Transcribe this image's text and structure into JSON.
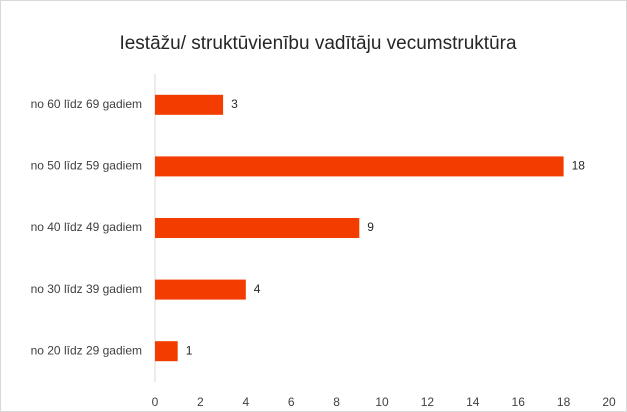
{
  "chart_data": {
    "type": "barh",
    "title": "Iestāžu/ struktūvienību vadītāju vecumstruktūra",
    "categories": [
      "no 60 līdz 69 gadiem",
      "no 50 līdz 59 gadiem",
      "no 40 līdz 49 gadiem",
      "no 30 līdz 39 gadiem",
      "no 20 līdz 29 gadiem"
    ],
    "values": [
      3,
      18,
      9,
      4,
      1
    ],
    "color": "#f23c00",
    "xlim": [
      0,
      20
    ],
    "xticks": [
      0,
      2,
      4,
      6,
      8,
      10,
      12,
      14,
      16,
      18,
      20
    ],
    "grid": false
  }
}
